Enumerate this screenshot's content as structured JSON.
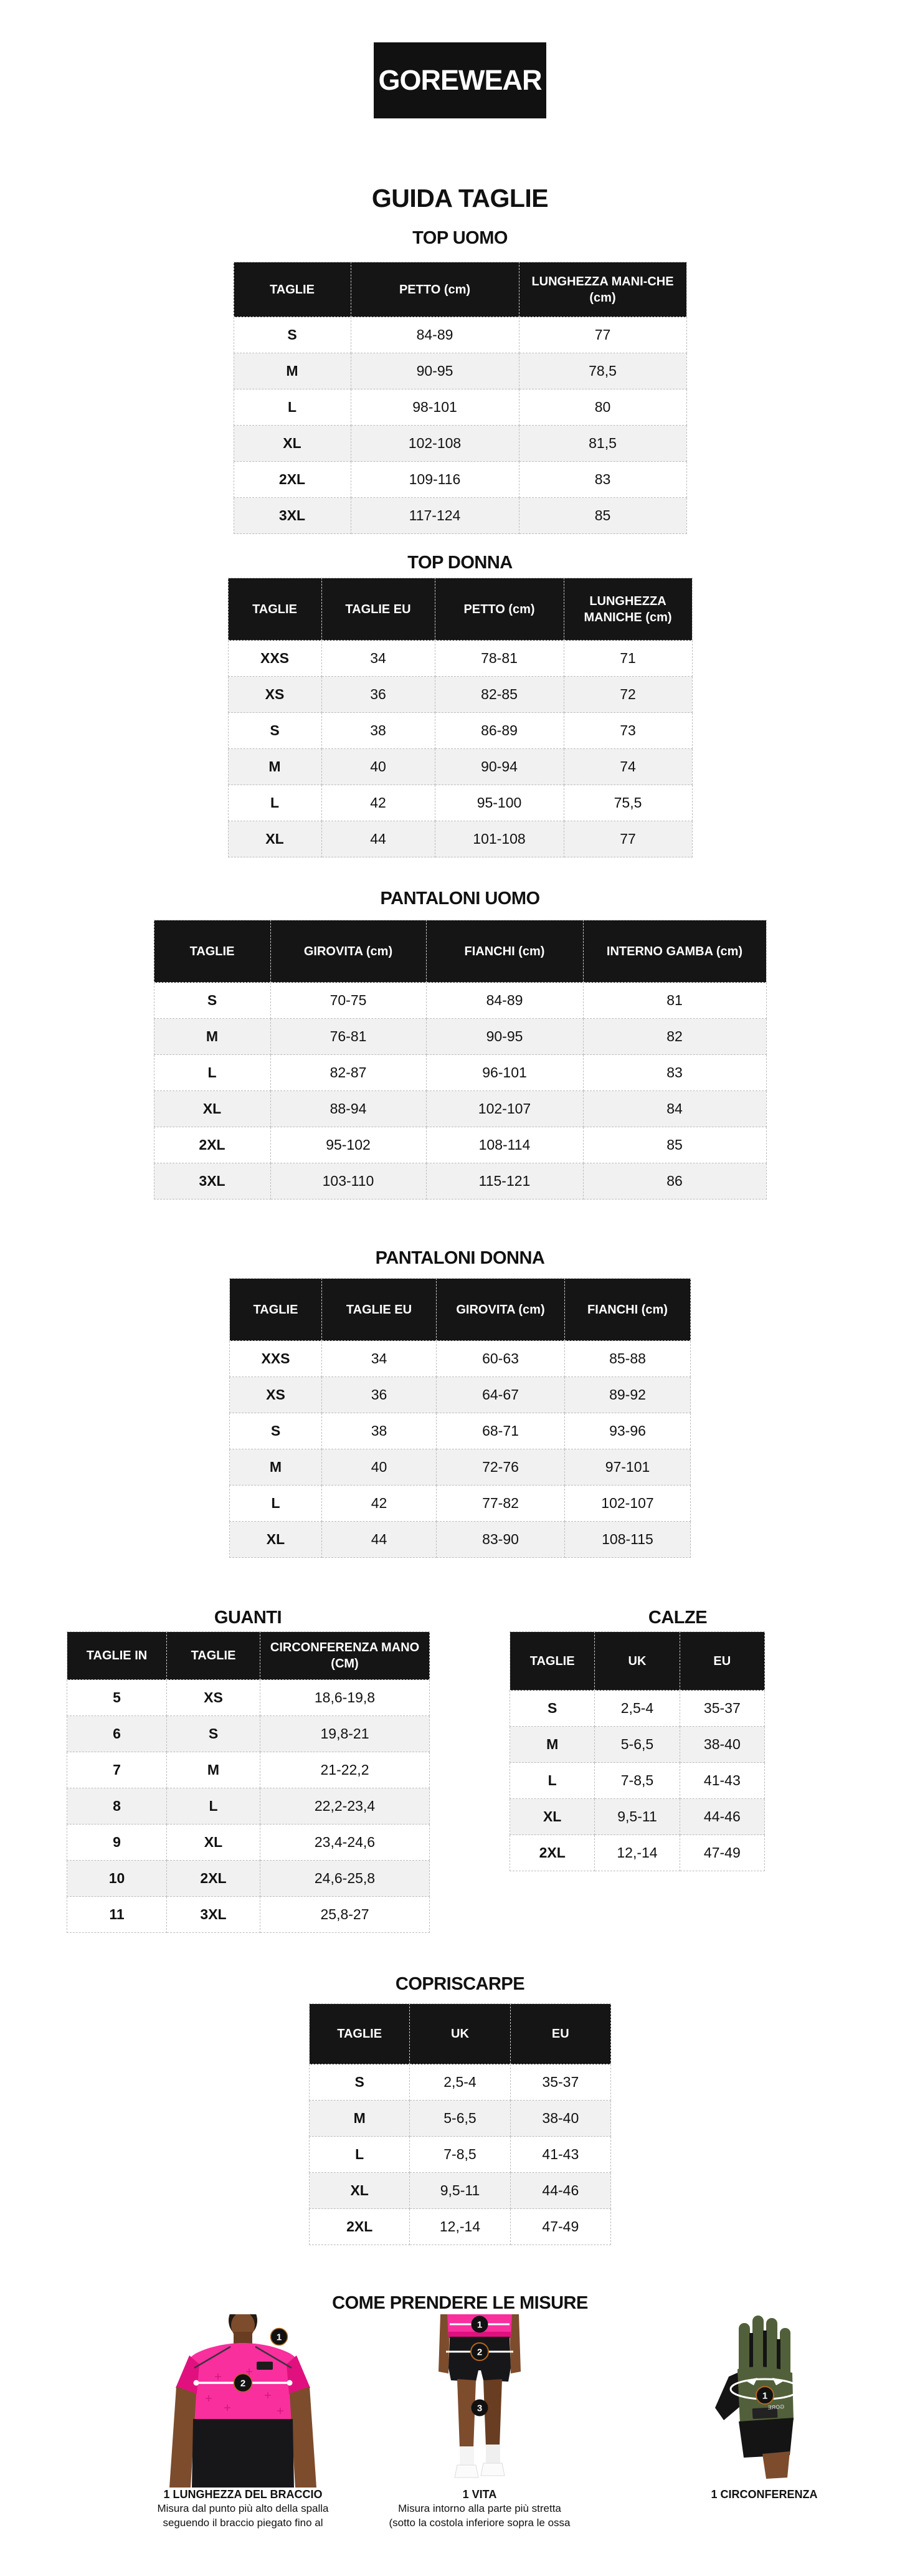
{
  "logo": {
    "text": "GOREWEAR"
  },
  "page_title": "GUIDA TAGLIE",
  "tables": [
    {
      "id": "top-uomo",
      "title": "TOP UOMO",
      "columns": [
        "TAGLIE",
        "PETTO (cm)",
        "LUNGHEZZA MANI-CHE (cm)"
      ],
      "rows": [
        [
          "S",
          "84-89",
          "77"
        ],
        [
          "M",
          "90-95",
          "78,5"
        ],
        [
          "L",
          "98-101",
          "80"
        ],
        [
          "XL",
          "102-108",
          "81,5"
        ],
        [
          "2XL",
          "109-116",
          "83"
        ],
        [
          "3XL",
          "117-124",
          "85"
        ]
      ]
    },
    {
      "id": "top-donna",
      "title": "TOP DONNA",
      "columns": [
        "TAGLIE",
        "TAGLIE EU",
        "PETTO (cm)",
        "LUNGHEZZA MANICHE (cm)"
      ],
      "rows": [
        [
          "XXS",
          "34",
          "78-81",
          "71"
        ],
        [
          "XS",
          "36",
          "82-85",
          "72"
        ],
        [
          "S",
          "38",
          "86-89",
          "73"
        ],
        [
          "M",
          "40",
          "90-94",
          "74"
        ],
        [
          "L",
          "42",
          "95-100",
          "75,5"
        ],
        [
          "XL",
          "44",
          "101-108",
          "77"
        ]
      ]
    },
    {
      "id": "pantaloni-uomo",
      "title": "PANTALONI UOMO",
      "columns": [
        "TAGLIE",
        "GIROVITA (cm)",
        "FIANCHI (cm)",
        "INTERNO GAMBA (cm)"
      ],
      "rows": [
        [
          "S",
          "70-75",
          "84-89",
          "81"
        ],
        [
          "M",
          "76-81",
          "90-95",
          "82"
        ],
        [
          "L",
          "82-87",
          "96-101",
          "83"
        ],
        [
          "XL",
          "88-94",
          "102-107",
          "84"
        ],
        [
          "2XL",
          "95-102",
          "108-114",
          "85"
        ],
        [
          "3XL",
          "103-110",
          "115-121",
          "86"
        ]
      ]
    },
    {
      "id": "pantaloni-donna",
      "title": "PANTALONI DONNA",
      "columns": [
        "TAGLIE",
        "TAGLIE EU",
        "GIROVITA (cm)",
        "FIANCHI (cm)"
      ],
      "rows": [
        [
          "XXS",
          "34",
          "60-63",
          "85-88"
        ],
        [
          "XS",
          "36",
          "64-67",
          "89-92"
        ],
        [
          "S",
          "38",
          "68-71",
          "93-96"
        ],
        [
          "M",
          "40",
          "72-76",
          "97-101"
        ],
        [
          "L",
          "42",
          "77-82",
          "102-107"
        ],
        [
          "XL",
          "44",
          "83-90",
          "108-115"
        ]
      ]
    },
    {
      "id": "guanti",
      "title": "GUANTI",
      "columns": [
        "TAGLIE IN",
        "TAGLIE",
        "CIRCONFERENZA MANO (CM)"
      ],
      "rows": [
        [
          "5",
          "XS",
          "18,6-19,8"
        ],
        [
          "6",
          "S",
          "19,8-21"
        ],
        [
          "7",
          "M",
          "21-22,2"
        ],
        [
          "8",
          "L",
          "22,2-23,4"
        ],
        [
          "9",
          "XL",
          "23,4-24,6"
        ],
        [
          "10",
          "2XL",
          "24,6-25,8"
        ],
        [
          "11",
          "3XL",
          "25,8-27"
        ]
      ]
    },
    {
      "id": "calze",
      "title": "CALZE",
      "columns": [
        "TAGLIE",
        "UK",
        "EU"
      ],
      "rows": [
        [
          "S",
          "2,5-4",
          "35-37"
        ],
        [
          "M",
          "5-6,5",
          "38-40"
        ],
        [
          "L",
          "7-8,5",
          "41-43"
        ],
        [
          "XL",
          "9,5-11",
          "44-46"
        ],
        [
          "2XL",
          "12,-14",
          "47-49"
        ]
      ]
    },
    {
      "id": "copriscarpe",
      "title": "COPRISCARPE",
      "columns": [
        "TAGLIE",
        "UK",
        "EU"
      ],
      "rows": [
        [
          "S",
          "2,5-4",
          "35-37"
        ],
        [
          "M",
          "5-6,5",
          "38-40"
        ],
        [
          "L",
          "7-8,5",
          "41-43"
        ],
        [
          "XL",
          "9,5-11",
          "44-46"
        ],
        [
          "2XL",
          "12,-14",
          "47-49"
        ]
      ]
    }
  ],
  "measure_section": {
    "title": "COME PRENDERE LE MISURE",
    "figures": [
      {
        "caption_title": "1 LUNGHEZZA DEL BRACCIO",
        "caption_lines": [
          "Misura dal punto più alto della spalla",
          "seguendo il braccio piegato fino al"
        ],
        "markers": [
          "1",
          "2"
        ]
      },
      {
        "caption_title": "1 VITA",
        "caption_lines": [
          "Misura intorno alla parte più stretta",
          "(sotto la costola inferiore sopra le ossa"
        ],
        "markers": [
          "1",
          "2",
          "3"
        ]
      },
      {
        "caption_title": "1 CIRCONFERENZA",
        "caption_lines": [],
        "markers": [
          "1"
        ],
        "glove_label": "GORE"
      }
    ]
  },
  "colors": {
    "header_bg": "#151515",
    "row_alt": "#f1f1f1",
    "accent_pink": "#f92f9d",
    "pink_shadow": "#e0117e",
    "glove_olive": "#51603a",
    "skin": "#7d4c2c",
    "skin_dark": "#693d22",
    "marker_ring": "#b3661f"
  }
}
